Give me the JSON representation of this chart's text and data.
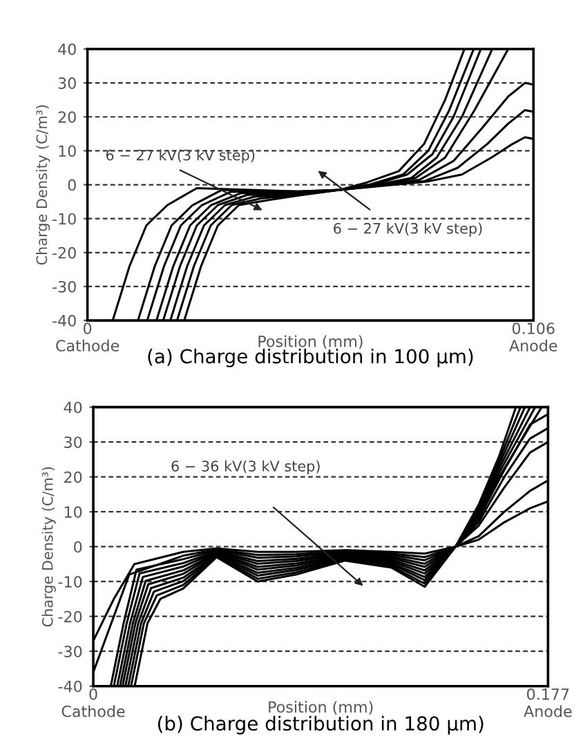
{
  "chart_data": [
    {
      "type": "line",
      "title": "(a) Charge distribution in 100 μm)",
      "xlabel": "Position (mm)",
      "ylabel": "Charge Density (C/m³)",
      "xlim": [
        0,
        0.106
      ],
      "xticks": [
        {
          "value": 0,
          "label": "0\nCathode"
        },
        {
          "value": 0.106,
          "label": "0.106\nAnode"
        }
      ],
      "ylim": [
        -40,
        40
      ],
      "yticks": [
        -40,
        -30,
        -20,
        -10,
        0,
        10,
        20,
        30,
        40
      ],
      "grid": "y",
      "annotations": [
        "6 − 27 kV(3 kV step)",
        "6 − 27 kV(3 kV step)"
      ],
      "series": [
        {
          "color": "#000000",
          "x": [
            0.006,
            0.01,
            0.014,
            0.019,
            0.026,
            0.05,
            0.06,
            0.073,
            0.081,
            0.089,
            0.096,
            0.101,
            0.104,
            0.106
          ],
          "values": [
            -40,
            -24,
            -12,
            -6,
            -1,
            -2,
            -1.5,
            0,
            1,
            3,
            8,
            12,
            14,
            13.5
          ]
        },
        {
          "color": "#000000",
          "x": [
            0.012,
            0.016,
            0.02,
            0.025,
            0.032,
            0.05,
            0.06,
            0.072,
            0.08,
            0.088,
            0.095,
            0.1,
            0.104,
            0.106
          ],
          "values": [
            -40,
            -24,
            -12,
            -6,
            -1.5,
            -2,
            -1.5,
            0,
            1,
            5,
            12,
            18,
            22,
            21.5
          ]
        },
        {
          "color": "#000000",
          "x": [
            0.0142,
            0.0182,
            0.0222,
            0.0272,
            0.0342,
            0.05,
            0.06,
            0.071,
            0.079,
            0.087,
            0.094,
            0.1,
            0.104,
            0.106
          ],
          "values": [
            -40,
            -24,
            -12,
            -6,
            -2,
            -2.2,
            -1.5,
            0,
            1.5,
            7,
            17,
            26,
            30,
            29.5
          ]
        },
        {
          "color": "#000000",
          "x": [
            0.0164,
            0.0204,
            0.0244,
            0.0294,
            0.0364,
            0.05,
            0.06,
            0.07,
            0.078,
            0.085,
            0.092,
            0.1
          ],
          "values": [
            -40,
            -24,
            -12,
            -6,
            -2.5,
            -2.4,
            -1.5,
            0,
            2,
            8,
            22,
            40
          ]
        },
        {
          "color": "#000000",
          "x": [
            0.018,
            0.022,
            0.026,
            0.031,
            0.038,
            0.05,
            0.06,
            0.069,
            0.077,
            0.083,
            0.089,
            0.0962
          ],
          "values": [
            -40,
            -24,
            -12,
            -6,
            -3,
            -2.6,
            -1.5,
            0,
            2,
            8,
            20,
            40
          ]
        },
        {
          "color": "#000000",
          "x": [
            0.0197,
            0.0237,
            0.0277,
            0.0327,
            0.0397,
            0.05,
            0.06,
            0.068,
            0.076,
            0.082,
            0.087,
            0.0935
          ],
          "values": [
            -40,
            -24,
            -12,
            -6,
            -3.5,
            -2.8,
            -1.5,
            0,
            3,
            9,
            20,
            40
          ]
        },
        {
          "color": "#000000",
          "x": [
            0.0213,
            0.0253,
            0.0293,
            0.0343,
            0.0413,
            0.05,
            0.06,
            0.067,
            0.075,
            0.081,
            0.086,
            0.0918
          ],
          "values": [
            -40,
            -24,
            -12,
            -6,
            -4,
            -3,
            -1.5,
            0,
            3,
            10,
            22,
            40
          ]
        },
        {
          "color": "#000000",
          "x": [
            0.023,
            0.027,
            0.031,
            0.036,
            0.043,
            0.05,
            0.06,
            0.066,
            0.074,
            0.08,
            0.085,
            0.0896
          ],
          "values": [
            -40,
            -24,
            -12,
            -6,
            -4.5,
            -3.2,
            -1.5,
            0.5,
            4,
            12,
            25,
            40
          ]
        }
      ]
    },
    {
      "type": "line",
      "title": "(b) Charge distribution in 180 μm)",
      "xlabel": "Position (mm)",
      "ylabel": "Charge Density (C/m³)",
      "xlim": [
        0,
        0.177
      ],
      "xticks": [
        {
          "value": 0,
          "label": "0\nCathode"
        },
        {
          "value": 0.177,
          "label": "0.177\nAnode"
        }
      ],
      "ylim": [
        -40,
        40
      ],
      "yticks": [
        -40,
        -30,
        -20,
        -10,
        0,
        10,
        20,
        30,
        40
      ],
      "grid": "y",
      "annotations": [
        "6 − 36 kV(3 kV step)"
      ],
      "series": [
        {
          "color": "#000000",
          "x": [
            0,
            0.008,
            0.016,
            0.035,
            0.048,
            0.064,
            0.079,
            0.098,
            0.116,
            0.129,
            0.141,
            0.15,
            0.16,
            0.17,
            0.177
          ],
          "values": [
            -27,
            -15,
            -5,
            -1.5,
            -0.5,
            -1.5,
            -1.5,
            -1,
            -1.5,
            -2,
            0,
            2,
            7,
            11,
            13
          ]
        },
        {
          "color": "#000000",
          "x": [
            0,
            0.007,
            0.014,
            0.035,
            0.048,
            0.064,
            0.079,
            0.098,
            0.116,
            0.129,
            0.141,
            0.15,
            0.16,
            0.17,
            0.177
          ],
          "values": [
            -36,
            -22,
            -8,
            -2.6,
            -0.8,
            -2.4,
            -2.2,
            -1.3,
            -2,
            -3,
            0,
            3,
            10,
            16,
            19
          ]
        },
        {
          "color": "#000000",
          "x": [
            0.0068,
            0.0118,
            0.0168,
            0.035,
            0.048,
            0.064,
            0.079,
            0.098,
            0.116,
            0.129,
            0.141,
            0.15,
            0.16,
            0.17,
            0.177
          ],
          "values": [
            -40,
            -22,
            -6.6,
            -3.6,
            -1,
            -3.2,
            -2.8,
            -1.6,
            -2.4,
            -3.9,
            0,
            6,
            17,
            27,
            30
          ]
        },
        {
          "color": "#000000",
          "x": [
            0.008,
            0.013,
            0.018,
            0.035,
            0.048,
            0.064,
            0.079,
            0.098,
            0.116,
            0.129,
            0.141,
            0.15,
            0.16,
            0.17,
            0.177
          ],
          "values": [
            -40,
            -22,
            -7.7,
            -4.7,
            -1.3,
            -4.1,
            -3.5,
            -1.9,
            -2.9,
            -4.9,
            0,
            7,
            20,
            31,
            34
          ]
        },
        {
          "color": "#000000",
          "x": [
            0.0093,
            0.0143,
            0.0193,
            0.035,
            0.048,
            0.064,
            0.079,
            0.098,
            0.116,
            0.129,
            0.141,
            0.15,
            0.16,
            0.17,
            0.177
          ],
          "values": [
            -40,
            -22,
            -8.7,
            -5.7,
            -1.5,
            -4.9,
            -4.1,
            -2.2,
            -3.3,
            -5.8,
            0,
            8,
            22,
            35,
            38
          ]
        },
        {
          "color": "#000000",
          "x": [
            0.0104,
            0.0154,
            0.0204,
            0.035,
            0.048,
            0.064,
            0.079,
            0.098,
            0.116,
            0.129,
            0.141,
            0.15,
            0.158,
            0.1745
          ],
          "values": [
            -40,
            -22,
            -9.8,
            -6.8,
            -1.8,
            -5.8,
            -4.8,
            -2.5,
            -3.8,
            -6.8,
            0,
            8,
            20,
            40
          ]
        },
        {
          "color": "#000000",
          "x": [
            0.0114,
            0.0164,
            0.0214,
            0.035,
            0.048,
            0.064,
            0.079,
            0.098,
            0.116,
            0.129,
            0.141,
            0.15,
            0.158,
            0.172
          ],
          "values": [
            -40,
            -22,
            -10.8,
            -7.8,
            -2,
            -6.6,
            -5.4,
            -2.8,
            -4.2,
            -7.7,
            0,
            8.8,
            21.2,
            40
          ]
        },
        {
          "color": "#000000",
          "x": [
            0.0125,
            0.0175,
            0.0225,
            0.035,
            0.048,
            0.064,
            0.079,
            0.098,
            0.116,
            0.129,
            0.141,
            0.15,
            0.158,
            0.17
          ],
          "values": [
            -40,
            -22,
            -11.9,
            -8.9,
            -2.3,
            -7.5,
            -6.1,
            -3.1,
            -4.7,
            -8.7,
            0,
            9.6,
            22.4,
            40
          ]
        },
        {
          "color": "#000000",
          "x": [
            0.0136,
            0.0186,
            0.0236,
            0.035,
            0.048,
            0.064,
            0.079,
            0.098,
            0.116,
            0.129,
            0.141,
            0.15,
            0.158,
            0.168
          ],
          "values": [
            -40,
            -22,
            -12.9,
            -9.9,
            -2.5,
            -8.3,
            -6.7,
            -3.4,
            -5.1,
            -9.6,
            0,
            10.4,
            23.6,
            40
          ]
        },
        {
          "color": "#000000",
          "x": [
            0.0147,
            0.0197,
            0.0247,
            0.035,
            0.048,
            0.064,
            0.079,
            0.098,
            0.116,
            0.129,
            0.141,
            0.15,
            0.158,
            0.1663
          ],
          "values": [
            -40,
            -22,
            -14,
            -11,
            -2.8,
            -9.2,
            -7.4,
            -3.7,
            -5.6,
            -10.6,
            0,
            11.2,
            24.8,
            40
          ]
        },
        {
          "color": "#000000",
          "x": [
            0.0161,
            0.0211,
            0.0261,
            0.035,
            0.048,
            0.064,
            0.079,
            0.098,
            0.116,
            0.129,
            0.141,
            0.15,
            0.158,
            0.1645
          ],
          "values": [
            -40,
            -22,
            -15,
            -12,
            -3,
            -10,
            -8,
            -4,
            -6,
            -11.5,
            0,
            12,
            26,
            40
          ]
        }
      ]
    }
  ]
}
